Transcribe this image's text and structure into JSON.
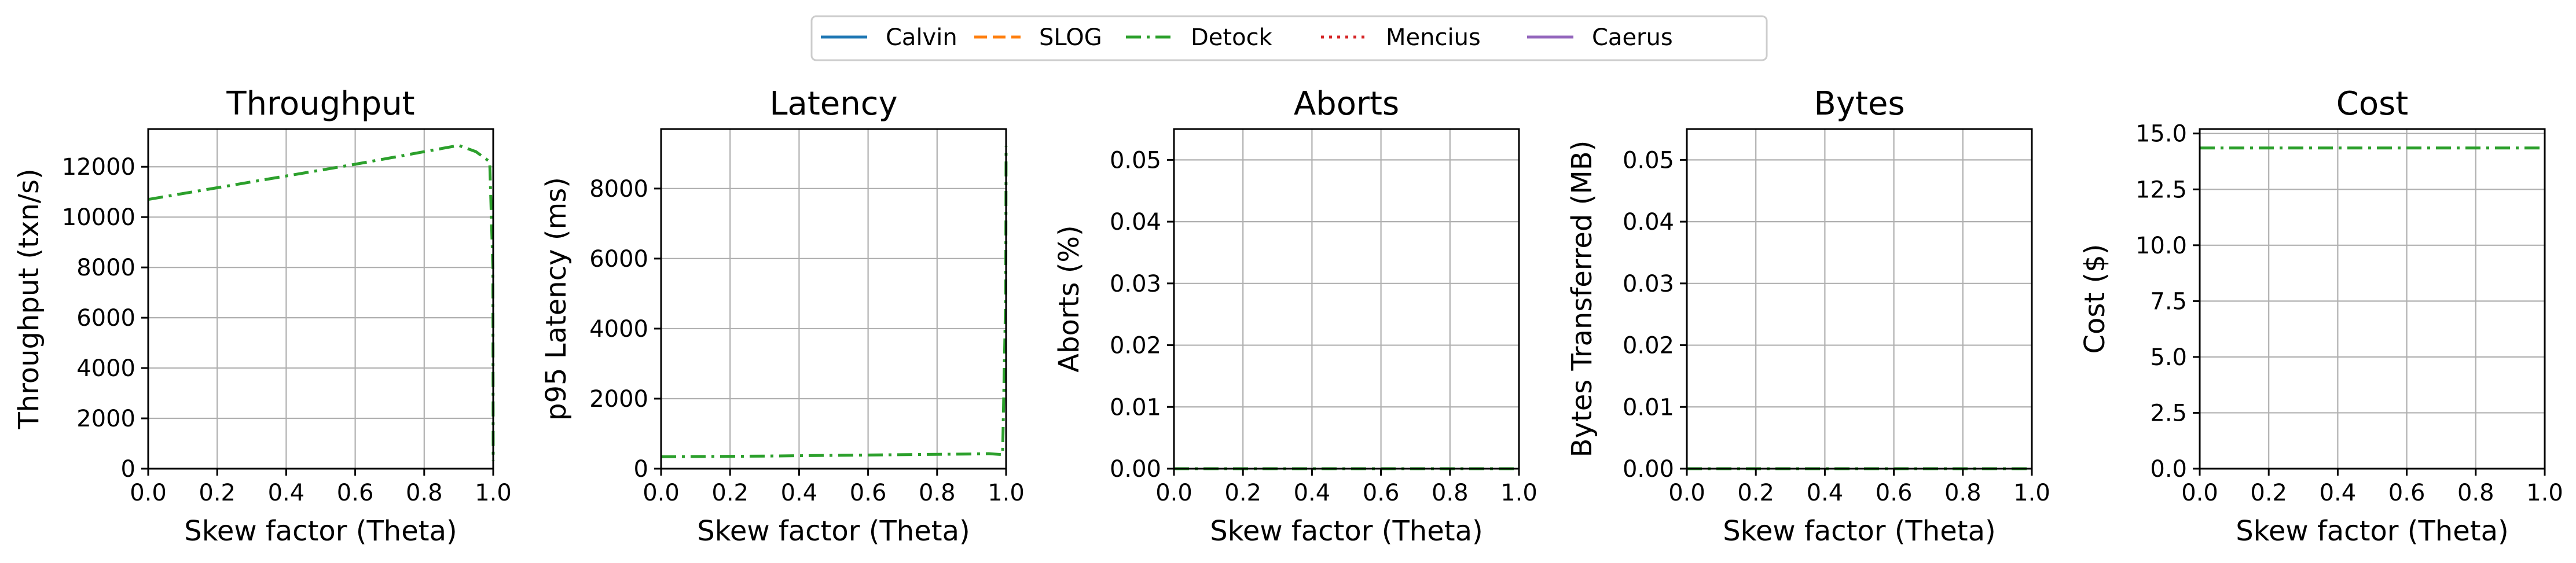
{
  "legend": {
    "placement": "top-center",
    "entries": [
      {
        "name": "Calvin",
        "color": "#1f77b4",
        "dash": "solid"
      },
      {
        "name": "SLOG",
        "color": "#ff7f0e",
        "dash": "dashed"
      },
      {
        "name": "Detock",
        "color": "#2ca02c",
        "dash": "dashdot"
      },
      {
        "name": "Mencius",
        "color": "#d62728",
        "dash": "dotted"
      },
      {
        "name": "Caerus",
        "color": "#9467bd",
        "dash": "solid"
      }
    ]
  },
  "chart_data": [
    {
      "type": "line",
      "title": "Throughput",
      "xlabel": "Skew factor (Theta)",
      "ylabel": "Throughput (txn/s)",
      "xlim": [
        0,
        1.0
      ],
      "ylim": [
        0,
        13500
      ],
      "xticks": [
        "0.0",
        "0.2",
        "0.4",
        "0.6",
        "0.8",
        "1.0"
      ],
      "yticks": [
        0,
        2000,
        4000,
        6000,
        8000,
        10000,
        12000
      ],
      "ytick_labels": [
        "0",
        "2000",
        "4000",
        "6000",
        "8000",
        "10000",
        "12000"
      ],
      "grid": true,
      "series": [
        {
          "name": "Detock",
          "x": [
            0.0,
            0.3,
            0.6,
            0.9,
            0.95,
            0.99,
            0.999,
            1.0
          ],
          "y": [
            10700,
            11400,
            12100,
            12850,
            12600,
            12200,
            8000,
            300
          ]
        }
      ]
    },
    {
      "type": "line",
      "title": "Latency",
      "xlabel": "Skew factor (Theta)",
      "ylabel": "p95 Latency (ms)",
      "xlim": [
        0,
        1.0
      ],
      "ylim": [
        0,
        9700
      ],
      "xticks": [
        "0.0",
        "0.2",
        "0.4",
        "0.6",
        "0.8",
        "1.0"
      ],
      "yticks": [
        0,
        2000,
        4000,
        6000,
        8000
      ],
      "ytick_labels": [
        "0",
        "2000",
        "4000",
        "6000",
        "8000"
      ],
      "grid": true,
      "series": [
        {
          "name": "Detock",
          "x": [
            0.0,
            0.3,
            0.6,
            0.9,
            0.95,
            0.99,
            0.999,
            1.0
          ],
          "y": [
            340,
            360,
            390,
            420,
            430,
            400,
            5000,
            9200
          ]
        }
      ]
    },
    {
      "type": "line",
      "title": "Aborts",
      "xlabel": "Skew factor (Theta)",
      "ylabel": "Aborts (%)",
      "xlim": [
        0,
        1.0
      ],
      "ylim": [
        0,
        0.055
      ],
      "xticks": [
        "0.0",
        "0.2",
        "0.4",
        "0.6",
        "0.8",
        "1.0"
      ],
      "yticks": [
        0,
        0.01,
        0.02,
        0.03,
        0.04,
        0.05
      ],
      "ytick_labels": [
        "0.00",
        "0.01",
        "0.02",
        "0.03",
        "0.04",
        "0.05"
      ],
      "grid": true,
      "series": [
        {
          "name": "Detock",
          "x": [
            0.0,
            0.5,
            1.0
          ],
          "y": [
            0,
            0,
            0
          ]
        }
      ]
    },
    {
      "type": "line",
      "title": "Bytes",
      "xlabel": "Skew factor (Theta)",
      "ylabel": "Bytes Transferred (MB)",
      "xlim": [
        0,
        1.0
      ],
      "ylim": [
        0,
        0.055
      ],
      "xticks": [
        "0.0",
        "0.2",
        "0.4",
        "0.6",
        "0.8",
        "1.0"
      ],
      "yticks": [
        0,
        0.01,
        0.02,
        0.03,
        0.04,
        0.05
      ],
      "ytick_labels": [
        "0.00",
        "0.01",
        "0.02",
        "0.03",
        "0.04",
        "0.05"
      ],
      "grid": true,
      "series": [
        {
          "name": "Detock",
          "x": [
            0.0,
            0.5,
            1.0
          ],
          "y": [
            0,
            0,
            0
          ]
        }
      ]
    },
    {
      "type": "line",
      "title": "Cost",
      "xlabel": "Skew factor (Theta)",
      "ylabel": "Cost ($)",
      "xlim": [
        0,
        1.0
      ],
      "ylim": [
        0,
        15.2
      ],
      "xticks": [
        "0.0",
        "0.2",
        "0.4",
        "0.6",
        "0.8",
        "1.0"
      ],
      "yticks": [
        0,
        2.5,
        5.0,
        7.5,
        10.0,
        12.5,
        15.0
      ],
      "ytick_labels": [
        "0.0",
        "2.5",
        "5.0",
        "7.5",
        "10.0",
        "12.5",
        "15.0"
      ],
      "grid": true,
      "series": [
        {
          "name": "Detock",
          "x": [
            0.0,
            0.5,
            1.0
          ],
          "y": [
            14.35,
            14.35,
            14.35
          ]
        }
      ]
    }
  ]
}
